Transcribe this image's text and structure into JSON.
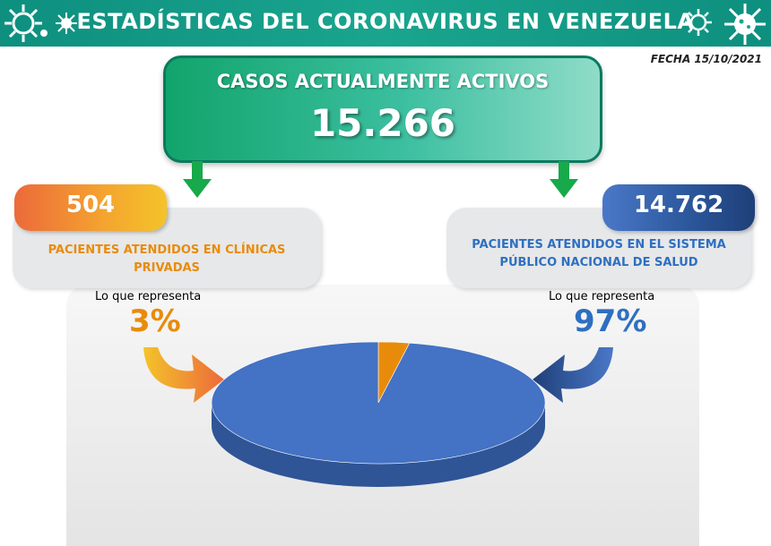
{
  "header": {
    "title": "ESTADÍSTICAS DEL CORONAVIRUS EN VENEZUELA",
    "date": "FECHA 15/10/2021"
  },
  "active_cases": {
    "title": "CASOS ACTUALMENTE ACTIVOS",
    "value": "15.266"
  },
  "private": {
    "value": "504",
    "label_line1": "PACIENTES ATENDIDOS EN CLÍNICAS",
    "label_line2": "PRIVADAS",
    "represent_label": "Lo que representa",
    "percent": "3%"
  },
  "public": {
    "value": "14.762",
    "label_line1": "PACIENTES ATENDIDOS EN EL SISTEMA",
    "label_line2": "PÚBLICO NACIONAL DE SALUD",
    "represent_label": "Lo que representa",
    "percent": "97%"
  },
  "colors": {
    "private": "#e98b0a",
    "public": "#4472c4",
    "public_side": "#2f5597",
    "private_side": "#b86c06"
  },
  "chart_data": {
    "type": "pie",
    "categories": [
      "Clínicas privadas",
      "Sistema público"
    ],
    "values": [
      3,
      97
    ]
  }
}
